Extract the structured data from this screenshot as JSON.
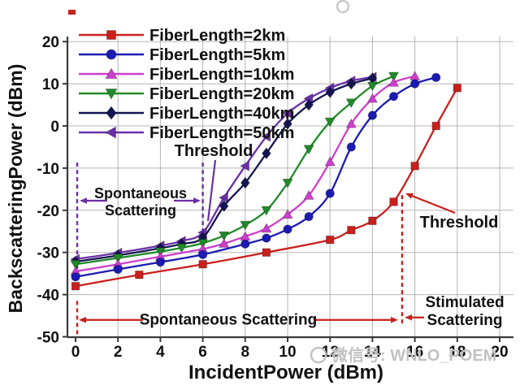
{
  "figure": {
    "x_title": "IncidentPower (dBm)",
    "y_title": "BackscatteringPower (dBm)",
    "watermark": "微信号: WNLO_POEM"
  },
  "chart_data": {
    "type": "line",
    "title": "",
    "xlabel": "IncidentPower (dBm)",
    "ylabel": "BackscatteringPower (dBm)",
    "xlim": [
      0,
      20
    ],
    "ylim": [
      -50,
      20
    ],
    "x_ticks": [
      0,
      2,
      4,
      6,
      8,
      10,
      12,
      14,
      16,
      18,
      20
    ],
    "y_ticks": [
      20,
      10,
      0,
      -10,
      -20,
      -30,
      -40,
      -50
    ],
    "grid": true,
    "legend_position": "top-left",
    "series": [
      {
        "name": "FiberLength=2km",
        "color": "#c9201d",
        "marker": "square",
        "points": [
          [
            0,
            -38
          ],
          [
            3,
            -35.3
          ],
          [
            6,
            -32.8
          ],
          [
            9,
            -30
          ],
          [
            12,
            -27
          ],
          [
            13,
            -24.7
          ],
          [
            14,
            -22.5
          ],
          [
            15,
            -18
          ],
          [
            16,
            -9.5
          ],
          [
            17,
            0
          ],
          [
            18,
            9
          ]
        ]
      },
      {
        "name": "FiberLength=5km",
        "color": "#1b1bb3",
        "marker": "circle",
        "points": [
          [
            0,
            -35.8
          ],
          [
            2,
            -34
          ],
          [
            4,
            -32.3
          ],
          [
            6,
            -30.5
          ],
          [
            8,
            -28
          ],
          [
            9,
            -26.6
          ],
          [
            10,
            -24.5
          ],
          [
            11,
            -21.5
          ],
          [
            12,
            -16
          ],
          [
            13,
            -5
          ],
          [
            14,
            2.5
          ],
          [
            15,
            7
          ],
          [
            16,
            10
          ],
          [
            17,
            11.5
          ]
        ]
      },
      {
        "name": "FiberLength=10km",
        "color": "#cc3fcc",
        "marker": "triangle-up",
        "points": [
          [
            0,
            -34.5
          ],
          [
            2,
            -32.8
          ],
          [
            4,
            -31
          ],
          [
            6,
            -29.2
          ],
          [
            7,
            -27.9
          ],
          [
            8,
            -26.2
          ],
          [
            9,
            -24.3
          ],
          [
            10,
            -21
          ],
          [
            11,
            -16.5
          ],
          [
            12,
            -8.5
          ],
          [
            13,
            0.5
          ],
          [
            14,
            6.5
          ],
          [
            15,
            10.3
          ],
          [
            16,
            11.8
          ]
        ]
      },
      {
        "name": "FiberLength=20km",
        "color": "#1f8b28",
        "marker": "triangle-down",
        "points": [
          [
            0,
            -32.8
          ],
          [
            2,
            -31.3
          ],
          [
            4,
            -29.8
          ],
          [
            5,
            -28.9
          ],
          [
            6,
            -27.8
          ],
          [
            7,
            -26
          ],
          [
            8,
            -23.5
          ],
          [
            9,
            -20
          ],
          [
            10,
            -13.5
          ],
          [
            11,
            -5.5
          ],
          [
            12,
            1
          ],
          [
            13,
            5.5
          ],
          [
            14,
            9.5
          ],
          [
            15,
            11.8
          ]
        ]
      },
      {
        "name": "FiberLength=40km",
        "color": "#141452",
        "marker": "diamond",
        "points": [
          [
            0,
            -32.2
          ],
          [
            2,
            -30.7
          ],
          [
            4,
            -29
          ],
          [
            5,
            -28
          ],
          [
            6,
            -26.5
          ],
          [
            7,
            -19
          ],
          [
            8,
            -13.5
          ],
          [
            9,
            -6.5
          ],
          [
            10,
            0.5
          ],
          [
            11,
            5
          ],
          [
            12,
            8
          ],
          [
            13,
            10
          ],
          [
            14,
            11.3
          ]
        ]
      },
      {
        "name": "FiberLength=50km",
        "color": "#6a2fa8",
        "marker": "triangle-left",
        "points": [
          [
            0,
            -31.6
          ],
          [
            2,
            -30.1
          ],
          [
            4,
            -28.4
          ],
          [
            5,
            -27.3
          ],
          [
            6,
            -25.3
          ],
          [
            7,
            -17
          ],
          [
            8,
            -9.5
          ],
          [
            9,
            -2.5
          ],
          [
            10,
            3
          ],
          [
            11,
            6.5
          ],
          [
            12,
            9
          ],
          [
            13,
            10.7
          ],
          [
            14,
            11.6
          ]
        ]
      }
    ],
    "annotations": {
      "threshold_top": {
        "label": "Threshold",
        "x": 6,
        "dash_y_from": -8.7,
        "dash_y_to": -30
      },
      "threshold_right": {
        "label": "Threshold",
        "x": 15.4,
        "dash_y_from": -16.4,
        "dash_y_to": -47.5
      },
      "spontaneous_left": {
        "lines": [
          "Spontaneous",
          "Scattering"
        ],
        "x_from": 0,
        "x_to": 6,
        "dash_y_from": -8.7,
        "dash_y_to": -36.5
      },
      "spontaneous_bottom": {
        "label": "Spontaneous Scattering",
        "x_from": 0,
        "x_to": 15.2,
        "y": -46
      },
      "stimulated": {
        "lines": [
          "Stimulated",
          "Scattering"
        ]
      }
    },
    "colors": {
      "grid": "#b5b5b5",
      "axis": "#3a3a3a",
      "tick_text": "#111111",
      "annotation_purple": "#6a2fa8",
      "annotation_red": "#c9201d",
      "watermark": "#c2c2c2"
    }
  }
}
